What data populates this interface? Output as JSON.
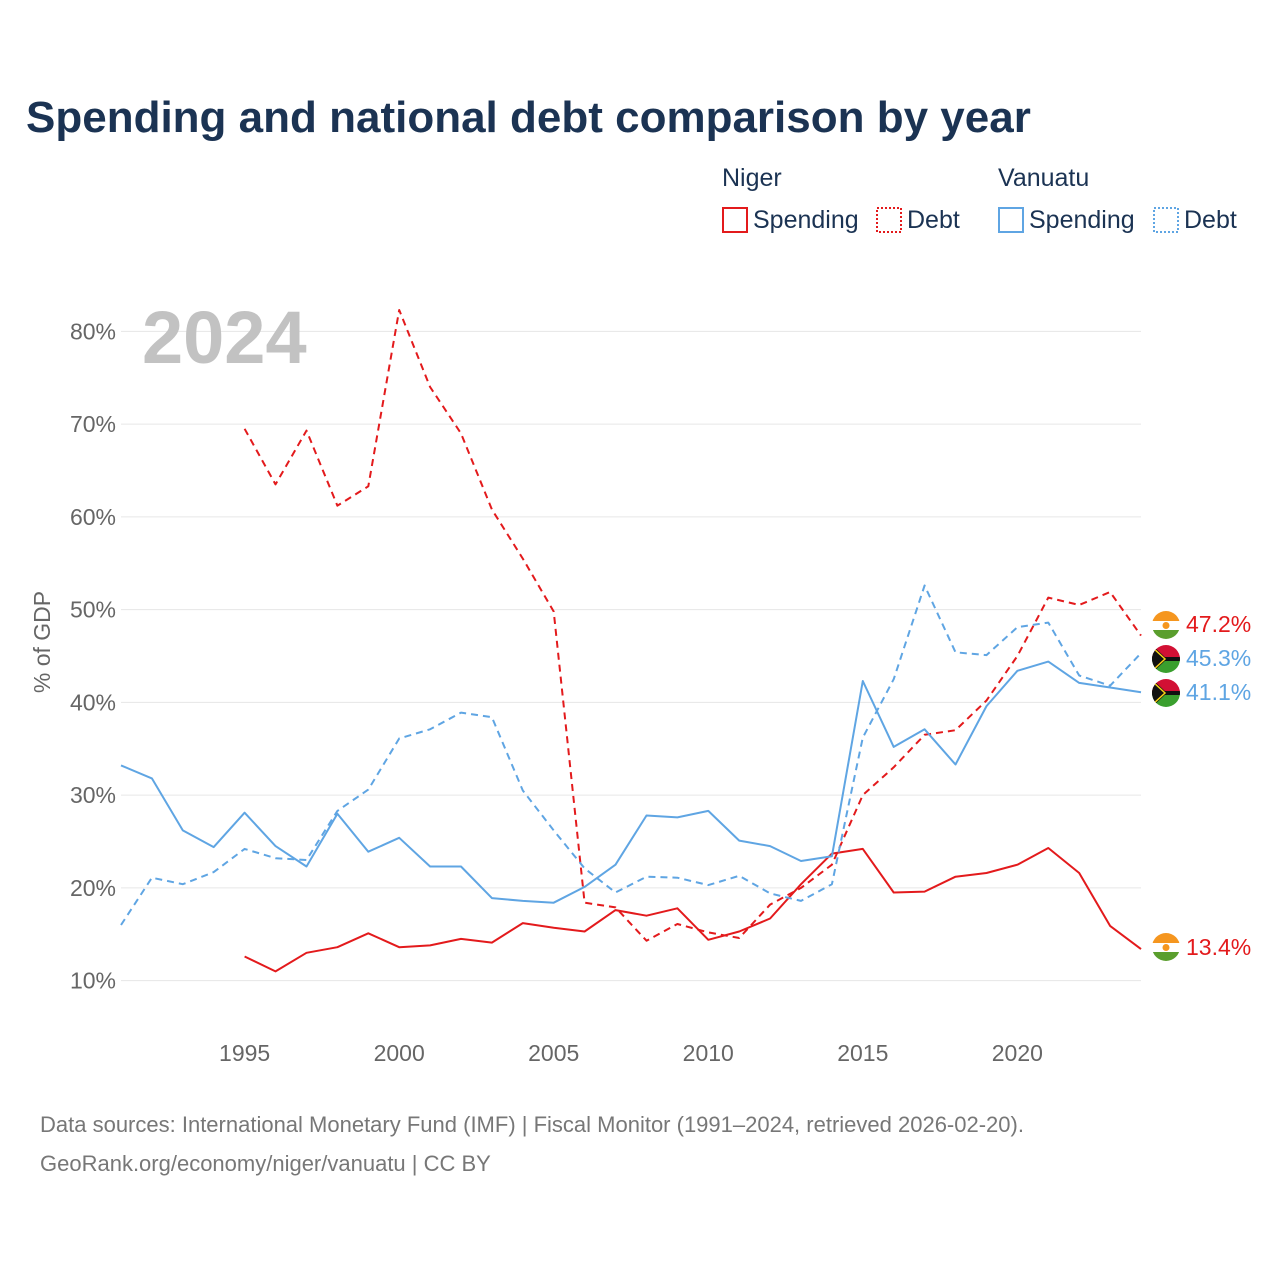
{
  "chart_data": {
    "type": "line",
    "title": "Spending and national debt comparison by year",
    "watermark_year": "2024",
    "xlabel": "",
    "ylabel": "% of GDP",
    "xlim": [
      1991,
      2024
    ],
    "ylim": [
      5,
      85
    ],
    "x_ticks": [
      1995,
      2000,
      2005,
      2010,
      2015,
      2020
    ],
    "y_ticks": [
      10,
      20,
      30,
      40,
      50,
      60,
      70,
      80
    ],
    "y_tick_labels": [
      "10%",
      "20%",
      "30%",
      "40%",
      "50%",
      "60%",
      "70%",
      "80%"
    ],
    "grid": true,
    "legend": {
      "placement": "top-right",
      "groups": [
        {
          "name": "Niger",
          "items": [
            "Spending",
            "Debt"
          ]
        },
        {
          "name": "Vanuatu",
          "items": [
            "Spending",
            "Debt"
          ]
        }
      ]
    },
    "series": [
      {
        "name": "Niger Debt",
        "country": "Niger",
        "metric": "Debt",
        "color": "#e31a1c",
        "dashed": true,
        "end_label": "47.2%",
        "x": [
          1995,
          1996,
          1997,
          1998,
          1999,
          2000,
          2001,
          2002,
          2003,
          2004,
          2005,
          2006,
          2007,
          2008,
          2009,
          2010,
          2011,
          2012,
          2013,
          2014,
          2015,
          2016,
          2017,
          2018,
          2019,
          2020,
          2021,
          2022,
          2023,
          2024
        ],
        "values": [
          69.5,
          63.5,
          69.3,
          61.2,
          63.3,
          82.3,
          74,
          69,
          60.8,
          55.5,
          49.8,
          18.4,
          17.9,
          14.3,
          16.1,
          15.2,
          14.6,
          18.2,
          20,
          22.5,
          30,
          33,
          36.5,
          37,
          40.2,
          45,
          51.3,
          50.5,
          51.9,
          47.2
        ]
      },
      {
        "name": "Niger Spending",
        "country": "Niger",
        "metric": "Spending",
        "color": "#e31a1c",
        "dashed": false,
        "end_label": "13.4%",
        "x": [
          1995,
          1996,
          1997,
          1998,
          1999,
          2000,
          2001,
          2002,
          2003,
          2004,
          2005,
          2006,
          2007,
          2008,
          2009,
          2010,
          2011,
          2012,
          2013,
          2014,
          2015,
          2016,
          2017,
          2018,
          2019,
          2020,
          2021,
          2022,
          2023,
          2024
        ],
        "values": [
          12.6,
          11,
          13,
          13.6,
          15.1,
          13.6,
          13.8,
          14.5,
          14.1,
          16.2,
          15.7,
          15.3,
          17.6,
          17,
          17.8,
          14.4,
          15.3,
          16.7,
          20.4,
          23.7,
          24.2,
          19.5,
          19.6,
          21.2,
          21.6,
          22.5,
          24.3,
          21.6,
          15.9,
          13.4
        ]
      },
      {
        "name": "Vanuatu Debt",
        "country": "Vanuatu",
        "metric": "Debt",
        "color": "#5fa5e3",
        "dashed": true,
        "end_label": "45.3%",
        "x": [
          1991,
          1992,
          1993,
          1994,
          1995,
          1996,
          1997,
          1998,
          1999,
          2000,
          2001,
          2002,
          2003,
          2004,
          2005,
          2006,
          2007,
          2008,
          2009,
          2010,
          2011,
          2012,
          2013,
          2014,
          2015,
          2016,
          2017,
          2018,
          2019,
          2020,
          2021,
          2022,
          2023,
          2024
        ],
        "values": [
          16,
          21.1,
          20.4,
          21.7,
          24.2,
          23.2,
          23,
          28.3,
          30.6,
          36.1,
          37.1,
          38.9,
          38.4,
          30.5,
          26.2,
          22.1,
          19.5,
          21.2,
          21.1,
          20.3,
          21.3,
          19.4,
          18.6,
          20.4,
          36.2,
          42.5,
          52.6,
          45.4,
          45.1,
          48.1,
          48.6,
          42.9,
          41.8,
          45.3
        ]
      },
      {
        "name": "Vanuatu Spending",
        "country": "Vanuatu",
        "metric": "Spending",
        "color": "#5fa5e3",
        "dashed": false,
        "end_label": "41.1%",
        "x": [
          1991,
          1992,
          1993,
          1994,
          1995,
          1996,
          1997,
          1998,
          1999,
          2000,
          2001,
          2002,
          2003,
          2004,
          2005,
          2006,
          2007,
          2008,
          2009,
          2010,
          2011,
          2012,
          2013,
          2014,
          2015,
          2016,
          2017,
          2018,
          2019,
          2020,
          2021,
          2022,
          2023,
          2024
        ],
        "values": [
          33.2,
          31.8,
          26.2,
          24.4,
          28.1,
          24.5,
          22.3,
          28,
          23.9,
          25.4,
          22.3,
          22.3,
          18.9,
          18.6,
          18.4,
          20.1,
          22.5,
          27.8,
          27.6,
          28.3,
          25.1,
          24.5,
          22.9,
          23.4,
          42.3,
          35.2,
          37.1,
          33.3,
          39.6,
          43.4,
          44.4,
          42.1,
          41.6,
          41.1
        ]
      }
    ]
  },
  "footer": {
    "source_line": "Data sources: International Monetary Fund (IMF) | Fiscal Monitor (1991–2024, retrieved 2026-02-20).",
    "credit_line": "GeoRank.org/economy/niger/vanuatu | CC BY"
  },
  "colors": {
    "title": "#1b3353",
    "axis_text": "#666666",
    "grid": "#e6e6e6",
    "watermark": "#c2c2c2",
    "niger_orange": "#f5961f",
    "niger_green": "#5a9e2d",
    "vanuatu_red": "#d21034",
    "vanuatu_green": "#3a9f2e",
    "vanuatu_black": "#111111",
    "vanuatu_yellow": "#f7d116"
  }
}
